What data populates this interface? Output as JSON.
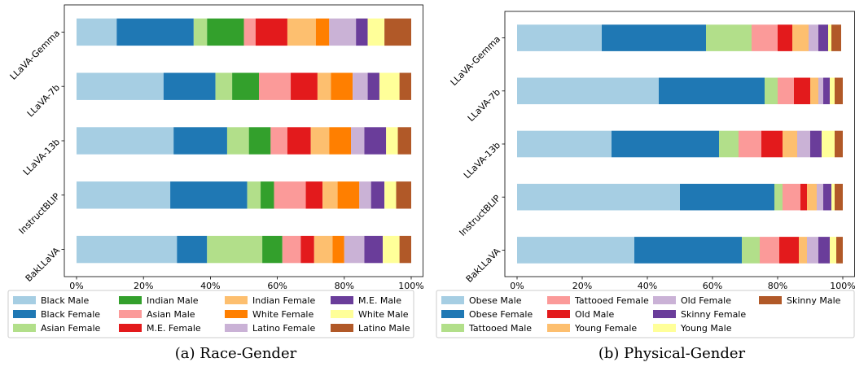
{
  "chart_data": [
    {
      "type": "bar",
      "orientation": "horizontal",
      "stacked": true,
      "title": "(a) Race-Gender",
      "categories": [
        "BakLLaVA",
        "InstructBLIP",
        "LLaVA-13b",
        "LLaVA-7b",
        "LLaVA-Gemma"
      ],
      "xlim": [
        0,
        100
      ],
      "xticks": [
        "0%",
        "20%",
        "40%",
        "60%",
        "80%",
        "100%"
      ],
      "legend_position": "bottom",
      "series": [
        {
          "name": "Black Male",
          "color": "#a6cee3",
          "values": [
            30,
            28,
            29,
            26,
            12
          ]
        },
        {
          "name": "Black Female",
          "color": "#1f78b4",
          "values": [
            9,
            23,
            16,
            15.5,
            23
          ]
        },
        {
          "name": "Asian Female",
          "color": "#b2df8a",
          "values": [
            16.5,
            4,
            6.5,
            5,
            4
          ]
        },
        {
          "name": "Indian Male",
          "color": "#33a02c",
          "values": [
            6,
            4,
            6.5,
            8,
            11
          ]
        },
        {
          "name": "Asian Male",
          "color": "#fb9a99",
          "values": [
            5.5,
            9.5,
            5,
            9.5,
            3.5
          ]
        },
        {
          "name": "M.E. Female",
          "color": "#e31a1c",
          "values": [
            4,
            5,
            7,
            8,
            9.5
          ]
        },
        {
          "name": "Indian Female",
          "color": "#fdbf6f",
          "values": [
            5.5,
            4.5,
            5.5,
            4,
            8.5
          ]
        },
        {
          "name": "White Female",
          "color": "#ff7f00",
          "values": [
            3.5,
            6.5,
            6.5,
            6.5,
            4
          ]
        },
        {
          "name": "Latino Female",
          "color": "#cab2d6",
          "values": [
            6,
            3.5,
            4,
            4.5,
            8
          ]
        },
        {
          "name": "M.E. Male",
          "color": "#6a3d9a",
          "values": [
            5.5,
            4,
            6.5,
            3.5,
            3.5
          ]
        },
        {
          "name": "White Male",
          "color": "#ffff99",
          "values": [
            5,
            3.5,
            3.5,
            6,
            5
          ]
        },
        {
          "name": "Latino Male",
          "color": "#b15928",
          "values": [
            3.5,
            4.5,
            4,
            3.5,
            8
          ]
        }
      ]
    },
    {
      "type": "bar",
      "orientation": "horizontal",
      "stacked": true,
      "title": "(b) Physical-Gender",
      "categories": [
        "BakLLaVA",
        "InstructBLIP",
        "LLaVA-13b",
        "LLaVA-7b",
        "LLaVA-Gemma"
      ],
      "xlim": [
        0,
        100
      ],
      "xticks": [
        "0%",
        "20%",
        "40%",
        "60%",
        "80%",
        "100%"
      ],
      "legend_position": "bottom",
      "series": [
        {
          "name": "Obese Male",
          "color": "#a6cee3",
          "values": [
            36,
            50,
            29,
            43.5,
            26
          ]
        },
        {
          "name": "Obese Female",
          "color": "#1f78b4",
          "values": [
            33,
            29,
            33,
            32.5,
            32
          ]
        },
        {
          "name": "Tattooed Male",
          "color": "#b2df8a",
          "values": [
            5.5,
            2.5,
            6,
            4,
            14
          ]
        },
        {
          "name": "Tattooed Female",
          "color": "#fb9a99",
          "values": [
            6,
            5.5,
            7,
            5,
            8
          ]
        },
        {
          "name": "Old Male",
          "color": "#e31a1c",
          "values": [
            6,
            2,
            6.5,
            5,
            4.5
          ]
        },
        {
          "name": "Young Female",
          "color": "#fdbf6f",
          "values": [
            2.5,
            3,
            4.5,
            2.5,
            5
          ]
        },
        {
          "name": "Old Female",
          "color": "#cab2d6",
          "values": [
            3.5,
            2,
            4,
            1.5,
            3
          ]
        },
        {
          "name": "Skinny Female",
          "color": "#6a3d9a",
          "values": [
            3.5,
            2.5,
            3.5,
            2,
            3
          ]
        },
        {
          "name": "Young Male",
          "color": "#ffff99",
          "values": [
            2,
            1,
            4,
            1.5,
            1
          ]
        },
        {
          "name": "Skinny Male",
          "color": "#b15928",
          "values": [
            2,
            2.5,
            2.5,
            2.5,
            3
          ]
        }
      ]
    }
  ]
}
